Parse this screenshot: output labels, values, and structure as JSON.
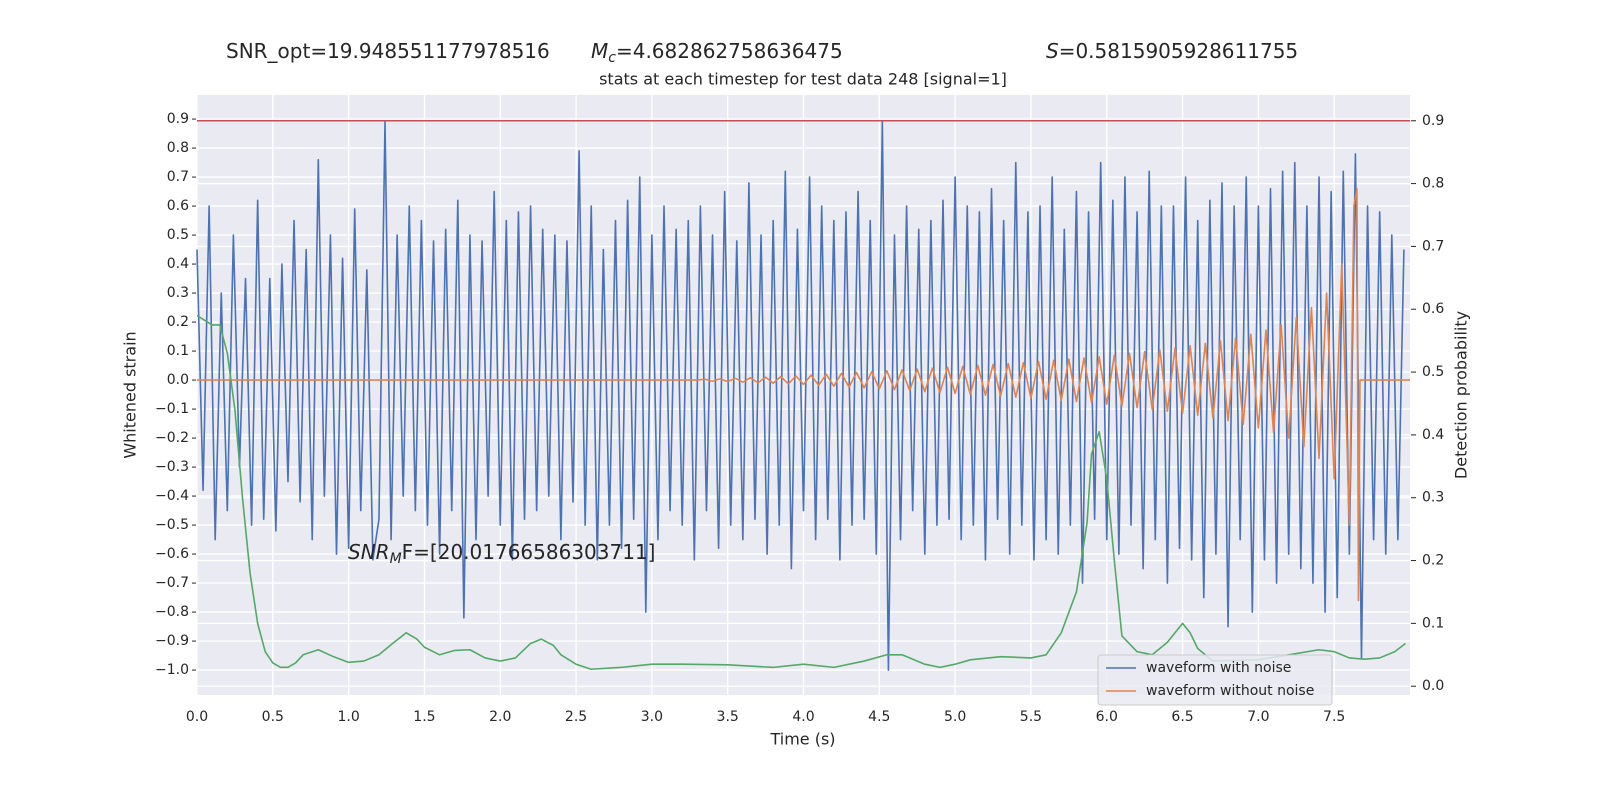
{
  "chart_data": {
    "type": "line",
    "title": "stats at each timestep for test data 248 [signal=1]",
    "xlabel": "Time (s)",
    "ylabel": "Whitened strain",
    "y2label": "Detection probability",
    "annotations": [
      {
        "text": "SNR_opt=19.948551177978516"
      },
      {
        "symbol": "M",
        "subscript": "c",
        "text": "=4.682862758636475"
      },
      {
        "symbol": "S",
        "text": "=0.5815905928611755"
      },
      {
        "symbol": "SNR",
        "subscript": "M",
        "text": "F=[20.01766586303711]"
      }
    ],
    "xlim": [
      0,
      8.0
    ],
    "ylim": [
      -1.086,
      0.983
    ],
    "y2lim": [
      -0.014,
      0.941
    ],
    "xticks": [
      {
        "value": 0,
        "label": "0.0"
      },
      0.5,
      {
        "value": 1,
        "label": "1.0"
      },
      1.5,
      {
        "value": 2,
        "label": "2.0"
      },
      2.5,
      {
        "value": 3,
        "label": "3.0"
      },
      3.5,
      {
        "value": 4,
        "label": "4.0"
      },
      4.5,
      {
        "value": 5,
        "label": "5.0"
      },
      5.5,
      {
        "value": 6,
        "label": "6.0"
      },
      6.5,
      {
        "value": 7,
        "label": "7.0"
      },
      7.5
    ],
    "yticks": [
      {
        "value": -1.0,
        "label": "−1.0"
      },
      {
        "value": -0.9,
        "label": "−0.9"
      },
      {
        "value": -0.8,
        "label": "−0.8"
      },
      {
        "value": -0.7,
        "label": "−0.7"
      },
      {
        "value": -0.6,
        "label": "−0.6"
      },
      {
        "value": -0.5,
        "label": "−0.5"
      },
      {
        "value": -0.4,
        "label": "−0.4"
      },
      {
        "value": -0.3,
        "label": "−0.3"
      },
      {
        "value": -0.2,
        "label": "−0.2"
      },
      {
        "value": -0.1,
        "label": "−0.1"
      },
      {
        "value": 0,
        "label": "0.0"
      },
      0.1,
      0.2,
      0.3,
      0.4,
      0.5,
      0.6,
      0.7,
      0.8,
      0.9
    ],
    "y2ticks": [
      {
        "value": 0,
        "label": "0.0"
      },
      0.1,
      0.2,
      0.3,
      0.4,
      0.5,
      0.6,
      0.7,
      0.8,
      0.9
    ],
    "grid": true,
    "legend": "lower right",
    "threshold": {
      "value": 0.9,
      "axis": "y2",
      "color": "#c44e52"
    },
    "series": [
      {
        "name": "waveform with noise",
        "color": "#4c72b0",
        "x": [
          0,
          0.04,
          0.08,
          0.12,
          0.16,
          0.2,
          0.24,
          0.28,
          0.32,
          0.36,
          0.4,
          0.44,
          0.48,
          0.52,
          0.56,
          0.6,
          0.64,
          0.68,
          0.72,
          0.76,
          0.8,
          0.84,
          0.88,
          0.92,
          0.96,
          1.0,
          1.04,
          1.08,
          1.12,
          1.16,
          1.2,
          1.24,
          1.28,
          1.32,
          1.36,
          1.4,
          1.44,
          1.48,
          1.52,
          1.56,
          1.6,
          1.64,
          1.68,
          1.72,
          1.76,
          1.8,
          1.84,
          1.88,
          1.92,
          1.96,
          2.0,
          2.04,
          2.08,
          2.12,
          2.16,
          2.2,
          2.24,
          2.28,
          2.32,
          2.36,
          2.4,
          2.44,
          2.48,
          2.52,
          2.56,
          2.6,
          2.64,
          2.68,
          2.72,
          2.76,
          2.8,
          2.84,
          2.88,
          2.92,
          2.96,
          3.0,
          3.04,
          3.08,
          3.12,
          3.16,
          3.2,
          3.24,
          3.28,
          3.32,
          3.36,
          3.4,
          3.44,
          3.48,
          3.52,
          3.56,
          3.6,
          3.64,
          3.68,
          3.72,
          3.76,
          3.8,
          3.84,
          3.88,
          3.92,
          3.96,
          4.0,
          4.04,
          4.08,
          4.12,
          4.16,
          4.2,
          4.24,
          4.28,
          4.32,
          4.36,
          4.4,
          4.44,
          4.48,
          4.52,
          4.56,
          4.6,
          4.64,
          4.68,
          4.72,
          4.76,
          4.8,
          4.84,
          4.88,
          4.92,
          4.96,
          5.0,
          5.04,
          5.08,
          5.12,
          5.16,
          5.2,
          5.24,
          5.28,
          5.32,
          5.36,
          5.4,
          5.44,
          5.48,
          5.52,
          5.56,
          5.6,
          5.64,
          5.68,
          5.72,
          5.76,
          5.8,
          5.84,
          5.88,
          5.92,
          5.96,
          6.0,
          6.04,
          6.08,
          6.12,
          6.16,
          6.2,
          6.24,
          6.28,
          6.32,
          6.36,
          6.4,
          6.44,
          6.48,
          6.52,
          6.56,
          6.6,
          6.64,
          6.68,
          6.72,
          6.76,
          6.8,
          6.84,
          6.88,
          6.92,
          6.96,
          7.0,
          7.04,
          7.08,
          7.12,
          7.16,
          7.2,
          7.24,
          7.28,
          7.32,
          7.36,
          7.4,
          7.44,
          7.48,
          7.52,
          7.56,
          7.6,
          7.64,
          7.68,
          7.72,
          7.76,
          7.8,
          7.84,
          7.88,
          7.92,
          7.96
        ],
        "values": [
          0.45,
          -0.38,
          0.6,
          -0.55,
          0.3,
          -0.45,
          0.5,
          -0.3,
          0.35,
          -0.5,
          0.62,
          -0.48,
          0.35,
          -0.52,
          0.4,
          -0.35,
          0.55,
          -0.42,
          0.45,
          -0.55,
          0.76,
          -0.4,
          0.5,
          -0.6,
          0.42,
          -0.58,
          0.59,
          -0.45,
          0.38,
          -0.62,
          -0.48,
          0.89,
          -0.55,
          0.5,
          -0.4,
          0.6,
          -0.45,
          0.55,
          -0.5,
          0.48,
          -0.6,
          0.52,
          -0.45,
          0.62,
          -0.82,
          0.5,
          -0.55,
          0.48,
          -0.4,
          0.65,
          -0.5,
          0.55,
          -0.62,
          0.58,
          -0.48,
          0.6,
          -0.45,
          0.52,
          -0.4,
          0.5,
          -0.55,
          0.48,
          -0.42,
          0.79,
          -0.5,
          0.6,
          -0.62,
          0.45,
          -0.5,
          0.55,
          -0.58,
          0.62,
          -0.48,
          0.7,
          -0.8,
          0.5,
          -0.55,
          0.6,
          -0.45,
          0.52,
          -0.5,
          0.55,
          -0.62,
          0.6,
          -0.45,
          0.5,
          -0.58,
          0.65,
          -0.5,
          0.48,
          -0.55,
          0.68,
          -0.48,
          0.5,
          -0.6,
          0.55,
          -0.5,
          0.72,
          -0.65,
          0.52,
          -0.45,
          0.7,
          -0.55,
          0.6,
          -0.48,
          0.55,
          -0.62,
          0.58,
          -0.5,
          0.65,
          -0.48,
          0.55,
          -0.6,
          0.89,
          -1.0,
          0.5,
          -0.55,
          0.6,
          -0.45,
          0.52,
          -0.6,
          0.55,
          -0.5,
          0.62,
          -0.48,
          0.7,
          -0.55,
          0.6,
          -0.5,
          0.58,
          -0.62,
          0.66,
          -0.48,
          0.55,
          -0.6,
          0.75,
          -0.5,
          0.58,
          -0.62,
          0.6,
          -0.55,
          0.7,
          -0.6,
          0.52,
          -0.5,
          0.65,
          -0.7,
          0.58,
          -0.48,
          0.75,
          -0.55,
          0.62,
          -0.6,
          0.7,
          -0.5,
          0.58,
          -0.65,
          0.72,
          -0.55,
          0.6,
          -0.7,
          0.6,
          -0.58,
          0.7,
          -0.62,
          0.55,
          -0.75,
          0.62,
          -0.6,
          0.68,
          -0.85,
          0.6,
          -0.55,
          0.7,
          -0.8,
          0.6,
          -0.62,
          0.66,
          -0.7,
          0.72,
          -0.6,
          0.75,
          -0.65,
          0.6,
          -0.7,
          0.7,
          -0.8,
          0.65,
          -0.75,
          0.72,
          -0.6,
          0.78,
          -0.96,
          0.6,
          -0.55,
          0.58,
          -0.6,
          0.5,
          -0.55,
          0.45
        ]
      },
      {
        "name": "waveform without noise",
        "color": "#dd8452",
        "x": [
          0,
          3.3,
          3.35,
          3.4,
          3.45,
          3.5,
          3.55,
          3.6,
          3.65,
          3.7,
          3.75,
          3.8,
          3.85,
          3.9,
          3.95,
          4.0,
          4.05,
          4.1,
          4.15,
          4.2,
          4.25,
          4.3,
          4.35,
          4.4,
          4.45,
          4.5,
          4.55,
          4.6,
          4.65,
          4.7,
          4.75,
          4.8,
          4.85,
          4.9,
          4.95,
          5.0,
          5.05,
          5.1,
          5.15,
          5.2,
          5.25,
          5.3,
          5.35,
          5.4,
          5.45,
          5.5,
          5.55,
          5.6,
          5.65,
          5.7,
          5.75,
          5.8,
          5.85,
          5.9,
          5.95,
          6.0,
          6.05,
          6.1,
          6.15,
          6.2,
          6.25,
          6.3,
          6.35,
          6.4,
          6.45,
          6.5,
          6.55,
          6.6,
          6.65,
          6.7,
          6.75,
          6.8,
          6.85,
          6.9,
          6.95,
          7.0,
          7.05,
          7.1,
          7.15,
          7.2,
          7.25,
          7.3,
          7.35,
          7.4,
          7.45,
          7.5,
          7.55,
          7.6,
          7.63,
          7.65,
          7.66,
          7.67,
          8.0
        ],
        "values": [
          0,
          0,
          0.003,
          -0.004,
          0.004,
          -0.005,
          0.006,
          -0.007,
          0.008,
          -0.009,
          0.01,
          -0.011,
          0.012,
          -0.013,
          0.014,
          -0.015,
          0.017,
          -0.018,
          0.02,
          -0.021,
          0.023,
          -0.024,
          0.026,
          -0.027,
          0.029,
          -0.03,
          0.032,
          -0.033,
          0.035,
          -0.036,
          0.038,
          -0.04,
          0.041,
          -0.043,
          0.044,
          -0.046,
          0.047,
          -0.049,
          0.05,
          -0.052,
          0.054,
          -0.055,
          0.057,
          -0.059,
          0.06,
          -0.062,
          0.064,
          -0.066,
          0.068,
          -0.07,
          0.072,
          -0.074,
          0.076,
          -0.078,
          0.08,
          -0.083,
          0.086,
          -0.089,
          0.092,
          -0.095,
          0.098,
          -0.101,
          0.104,
          -0.107,
          0.11,
          -0.114,
          0.118,
          -0.122,
          0.126,
          -0.13,
          0.135,
          -0.14,
          0.146,
          -0.152,
          0.158,
          -0.165,
          0.172,
          -0.18,
          0.19,
          -0.2,
          0.215,
          -0.23,
          0.25,
          -0.27,
          0.3,
          -0.34,
          0.4,
          -0.5,
          0.6,
          0.66,
          -0.76,
          0,
          0
        ]
      },
      {
        "color": "#55a868",
        "axis": "y2",
        "x": [
          0,
          0.1,
          0.15,
          0.2,
          0.25,
          0.3,
          0.35,
          0.4,
          0.45,
          0.5,
          0.55,
          0.6,
          0.65,
          0.7,
          0.8,
          0.9,
          1.0,
          1.1,
          1.2,
          1.3,
          1.38,
          1.45,
          1.5,
          1.6,
          1.7,
          1.8,
          1.9,
          2.0,
          2.1,
          2.2,
          2.27,
          2.35,
          2.4,
          2.5,
          2.6,
          2.8,
          3.0,
          3.2,
          3.5,
          3.8,
          4.0,
          4.2,
          4.4,
          4.55,
          4.65,
          4.8,
          4.9,
          5.0,
          5.1,
          5.3,
          5.5,
          5.6,
          5.7,
          5.8,
          5.87,
          5.9,
          5.95,
          6.0,
          6.05,
          6.1,
          6.2,
          6.3,
          6.4,
          6.5,
          6.55,
          6.6,
          6.7,
          7.0,
          7.2,
          7.4,
          7.5,
          7.6,
          7.7,
          7.8,
          7.9,
          7.97
        ],
        "values": [
          0.59,
          0.575,
          0.575,
          0.53,
          0.44,
          0.3,
          0.18,
          0.1,
          0.055,
          0.037,
          0.03,
          0.03,
          0.037,
          0.05,
          0.058,
          0.047,
          0.038,
          0.04,
          0.05,
          0.07,
          0.085,
          0.075,
          0.062,
          0.05,
          0.057,
          0.058,
          0.045,
          0.04,
          0.045,
          0.068,
          0.075,
          0.065,
          0.05,
          0.035,
          0.027,
          0.03,
          0.035,
          0.035,
          0.034,
          0.03,
          0.035,
          0.03,
          0.04,
          0.05,
          0.05,
          0.035,
          0.03,
          0.035,
          0.042,
          0.047,
          0.045,
          0.05,
          0.085,
          0.15,
          0.26,
          0.37,
          0.405,
          0.33,
          0.2,
          0.08,
          0.055,
          0.05,
          0.07,
          0.1,
          0.085,
          0.06,
          0.04,
          0.042,
          0.05,
          0.058,
          0.055,
          0.045,
          0.043,
          0.045,
          0.055,
          0.068
        ]
      }
    ]
  }
}
